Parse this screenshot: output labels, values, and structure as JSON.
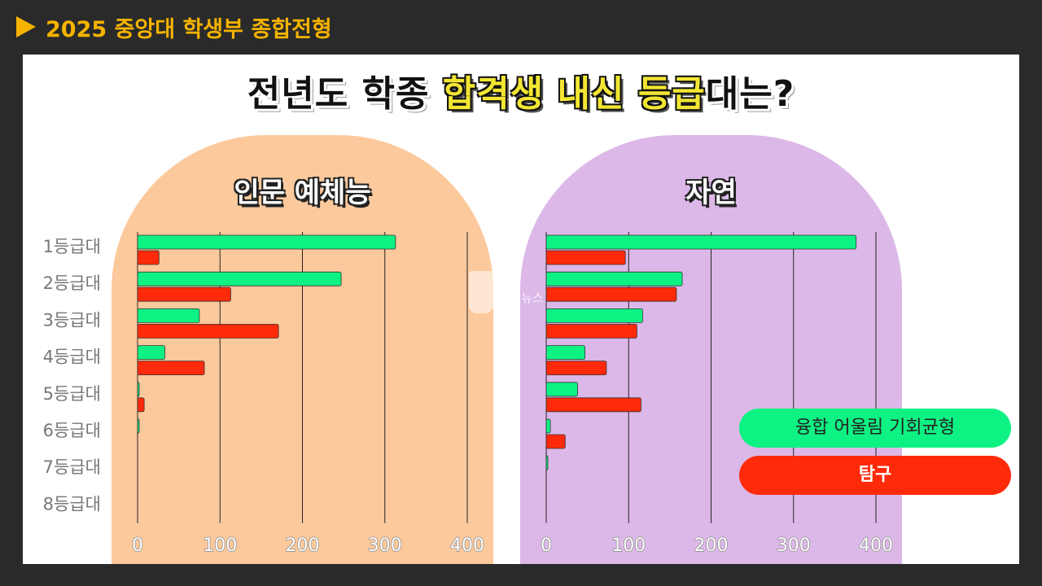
{
  "header": {
    "title": "2025 중앙대 학생부 종합전형"
  },
  "main_title": {
    "part1": "전년도 학종 ",
    "highlight1": "합격생 내신 등급",
    "part2": "대는?"
  },
  "colors": {
    "series1": "#0ef283",
    "series2": "#ff2a0a",
    "left_panel": "#fcc99c",
    "right_panel": "#dcb8e8",
    "header_accent": "#f5b300"
  },
  "watermark": "참은 뉴스",
  "legend": {
    "series1": "융합 어울림 기회균형",
    "series2": "탐구"
  },
  "chart_data": [
    {
      "type": "bar",
      "orientation": "horizontal",
      "title": "인문 예체능",
      "categories": [
        "1등급대",
        "2등급대",
        "3등급대",
        "4등급대",
        "5등급대",
        "6등급대",
        "7등급대",
        "8등급대"
      ],
      "series": [
        {
          "name": "융합 어울림 기회균형",
          "values": [
            313,
            247,
            75,
            33,
            1,
            1,
            0,
            0
          ]
        },
        {
          "name": "탐구",
          "values": [
            26,
            113,
            171,
            81,
            8,
            0,
            0,
            0
          ]
        }
      ],
      "xlim": [
        0,
        400
      ],
      "xticks": [
        "0",
        "100",
        "200",
        "300",
        "400"
      ],
      "grid": true
    },
    {
      "type": "bar",
      "orientation": "horizontal",
      "title": "자연",
      "categories": [
        "1등급대",
        "2등급대",
        "3등급대",
        "4등급대",
        "5등급대",
        "6등급대",
        "7등급대",
        "8등급대"
      ],
      "series": [
        {
          "name": "융합 어울림 기회균형",
          "values": [
            376,
            165,
            117,
            47,
            38,
            5,
            2,
            0
          ]
        },
        {
          "name": "탐구",
          "values": [
            96,
            158,
            110,
            73,
            115,
            23,
            0,
            0
          ]
        }
      ],
      "xlim": [
        0,
        400
      ],
      "xticks": [
        "0",
        "100",
        "200",
        "300",
        "400"
      ],
      "grid": true
    }
  ]
}
